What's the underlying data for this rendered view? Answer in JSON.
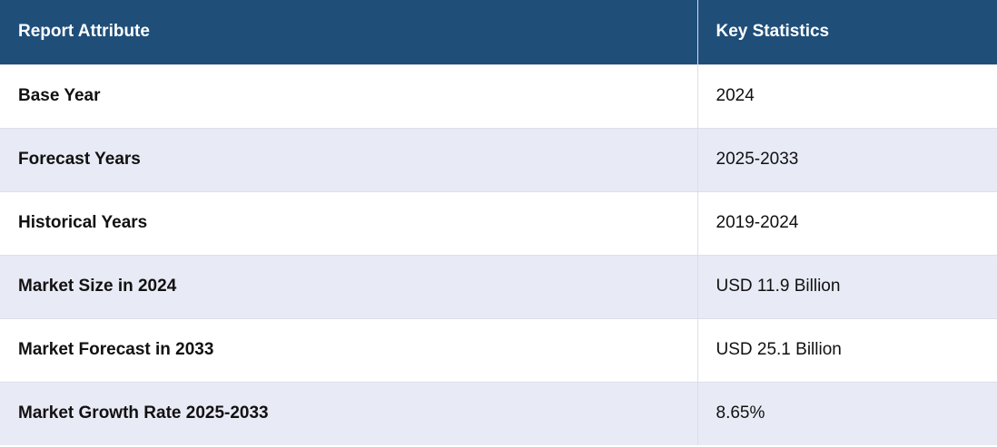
{
  "table": {
    "headers": {
      "attribute": "Report Attribute",
      "statistics": "Key Statistics"
    },
    "rows": [
      {
        "attribute": "Base Year",
        "value": "2024"
      },
      {
        "attribute": "Forecast Years",
        "value": "2025-2033"
      },
      {
        "attribute": "Historical Years",
        "value": "2019-2024"
      },
      {
        "attribute": "Market Size in 2024",
        "value": "USD 11.9 Billion"
      },
      {
        "attribute": "Market Forecast in 2033",
        "value": "USD 25.1 Billion"
      },
      {
        "attribute": "Market Growth Rate 2025-2033",
        "value": "8.65%"
      }
    ]
  },
  "colors": {
    "header_background": "#1f4e79",
    "header_text": "#ffffff",
    "stripe_background": "#e8eaf5",
    "body_text": "#111111"
  }
}
